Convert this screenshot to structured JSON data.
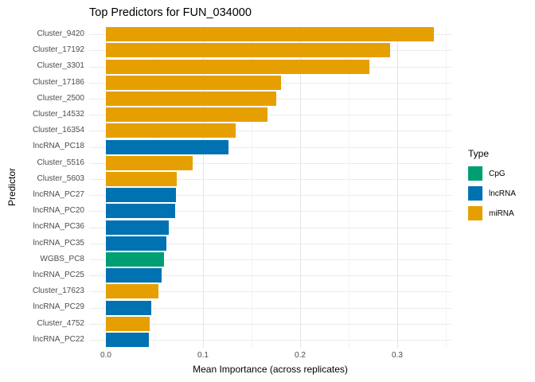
{
  "title": "Top Predictors for FUN_034000",
  "axes": {
    "x_title": "Mean Importance (across replicates)",
    "y_title": "Predictor",
    "x_tick_labels": [
      "0.0",
      "0.1",
      "0.2",
      "0.3"
    ]
  },
  "legend": {
    "title": "Type",
    "items": [
      {
        "label": "CpG",
        "color": "#009E73"
      },
      {
        "label": "lncRNA",
        "color": "#0072B2"
      },
      {
        "label": "miRNA",
        "color": "#E69F00"
      }
    ]
  },
  "chart_data": {
    "type": "bar",
    "orientation": "horizontal",
    "title": "Top Predictors for FUN_034000",
    "xlabel": "Mean Importance (across replicates)",
    "ylabel": "Predictor",
    "xlim": [
      -0.017,
      0.356
    ],
    "x_major_ticks": [
      0,
      0.1,
      0.2,
      0.3
    ],
    "x_minor_ticks": [
      0.05,
      0.15,
      0.25,
      0.35
    ],
    "grid": true,
    "legend_position": "right",
    "categories": [
      "Cluster_9420",
      "Cluster_17192",
      "Cluster_3301",
      "Cluster_17186",
      "Cluster_2500",
      "Cluster_14532",
      "Cluster_16354",
      "lncRNA_PC18",
      "Cluster_5516",
      "Cluster_5603",
      "lncRNA_PC27",
      "lncRNA_PC20",
      "lncRNA_PC36",
      "lncRNA_PC35",
      "WGBS_PC8",
      "lncRNA_PC25",
      "Cluster_17623",
      "lncRNA_PC29",
      "Cluster_4752",
      "lncRNA_PC22"
    ],
    "values": [
      0.338,
      0.293,
      0.271,
      0.18,
      0.175,
      0.166,
      0.134,
      0.126,
      0.089,
      0.073,
      0.072,
      0.071,
      0.065,
      0.062,
      0.06,
      0.057,
      0.054,
      0.047,
      0.045,
      0.044
    ],
    "types": [
      "miRNA",
      "miRNA",
      "miRNA",
      "miRNA",
      "miRNA",
      "miRNA",
      "miRNA",
      "lncRNA",
      "miRNA",
      "miRNA",
      "lncRNA",
      "lncRNA",
      "lncRNA",
      "lncRNA",
      "CpG",
      "lncRNA",
      "miRNA",
      "lncRNA",
      "miRNA",
      "lncRNA"
    ],
    "type_colors": {
      "CpG": "#009E73",
      "lncRNA": "#0072B2",
      "miRNA": "#E69F00"
    }
  }
}
